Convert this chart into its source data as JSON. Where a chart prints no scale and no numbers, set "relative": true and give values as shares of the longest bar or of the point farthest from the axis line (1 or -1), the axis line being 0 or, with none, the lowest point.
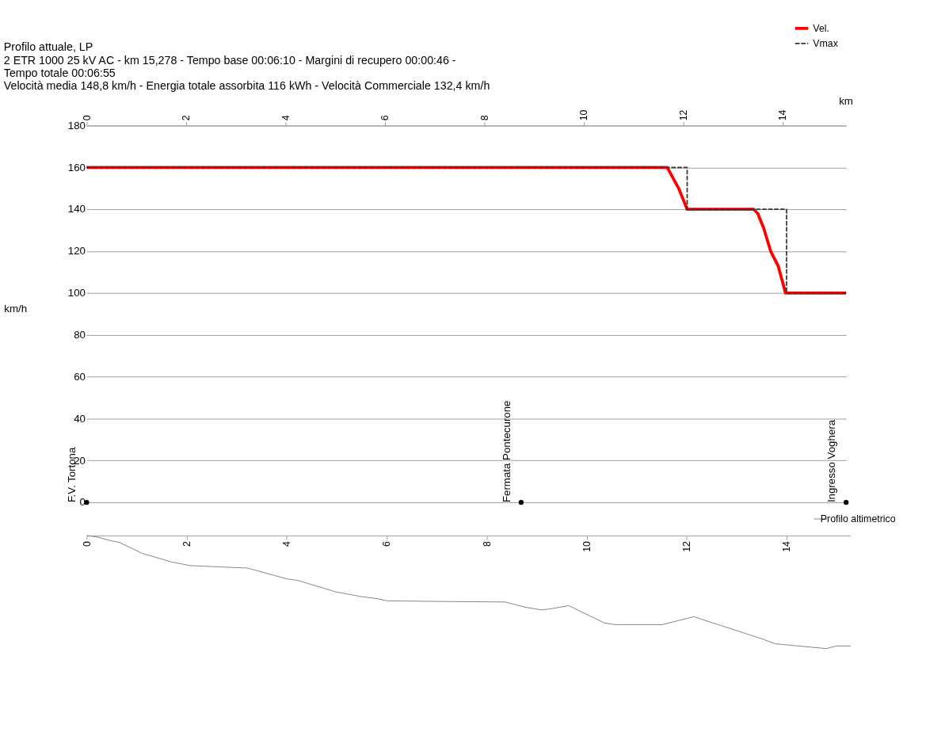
{
  "chart_data": [
    {
      "type": "line",
      "title": "Profilo attuale, LP",
      "subtitle": "2 ETR 1000 25 kV AC  -  km 15,278  -  Tempo base 00:06:10  -  Margini di recupero 00:00:46  -\nTempo totale 00:06:55\nVelocità media 148,8 km/h  -  Energia totale assorbita 116 kWh  -  Velocità Commerciale 132,4 km/h",
      "xlabel": "km",
      "ylabel": "km/h",
      "xlim": [
        0,
        15.278
      ],
      "xticks": [
        0,
        2,
        4,
        6,
        8,
        10,
        12,
        14
      ],
      "ylim": [
        0,
        180
      ],
      "yticks": [
        0,
        20,
        40,
        60,
        80,
        100,
        120,
        140,
        160,
        180
      ],
      "grid": "y",
      "legend": "top right",
      "series": [
        {
          "name": "Vel.",
          "color": "#ff0000",
          "line_style": "solid",
          "x": [
            0,
            11.68,
            11.91,
            12.08,
            13.42,
            13.5,
            13.62,
            13.76,
            13.91,
            14.06,
            15.278
          ],
          "values": [
            160,
            160,
            150,
            140,
            140,
            138,
            131,
            120,
            113,
            100,
            100
          ]
        },
        {
          "name": "Vmax",
          "color": "#333333",
          "line_style": "dashed",
          "x": [
            0,
            12.08,
            12.08,
            14.08,
            14.08,
            15.278
          ],
          "values": [
            160,
            160,
            140,
            140,
            100,
            100
          ]
        },
        {
          "type": "scatter",
          "color": "#000000",
          "marker": "circle",
          "x": [
            0,
            8.74,
            15.278
          ],
          "values": [
            0,
            0,
            0
          ]
        }
      ],
      "annotations": [
        {
          "text": "F.V. Tortona",
          "x": 0,
          "y": 0
        },
        {
          "text": "Fermata Pontecurone",
          "x": 8.74,
          "y": 0
        },
        {
          "text": "Ingresso Voghera",
          "x": 15.278,
          "y": 0
        }
      ]
    },
    {
      "type": "line",
      "relative": true,
      "xlim": [
        0,
        15.278
      ],
      "xticks": [
        0,
        2,
        4,
        6,
        8,
        10,
        12,
        14
      ],
      "tick_labels": "x",
      "legend": "top right",
      "series": [
        {
          "name": "Profilo altimetrico",
          "color": "#808080",
          "line_style": "solid",
          "x": [
            0,
            0.23,
            0.46,
            0.66,
            1.12,
            1.7,
            2.07,
            2.85,
            3.22,
            4.0,
            4.23,
            4.98,
            5.5,
            5.79,
            6.02,
            7.27,
            8.37,
            8.74,
            9.1,
            9.3,
            9.64,
            10.35,
            10.57,
            11.51,
            12.14,
            13.49,
            13.77,
            14.79,
            14.99,
            15.278
          ],
          "values": [
            0,
            -0.015,
            -0.043,
            -0.062,
            -0.159,
            -0.234,
            -0.266,
            -0.281,
            -0.288,
            -0.383,
            -0.398,
            -0.498,
            -0.541,
            -0.557,
            -0.578,
            -0.584,
            -0.588,
            -0.632,
            -0.658,
            -0.647,
            -0.62,
            -0.773,
            -0.788,
            -0.788,
            -0.718,
            -0.912,
            -0.958,
            -1,
            -0.977,
            -0.977
          ]
        }
      ]
    }
  ]
}
